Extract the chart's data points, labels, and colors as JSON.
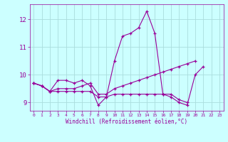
{
  "xlabel": "Windchill (Refroidissement éolien,°C)",
  "x": [
    0,
    1,
    2,
    3,
    4,
    5,
    6,
    7,
    8,
    9,
    10,
    11,
    12,
    13,
    14,
    15,
    16,
    17,
    18,
    19,
    20,
    21,
    22,
    23
  ],
  "line1": [
    9.7,
    9.6,
    9.4,
    9.8,
    9.8,
    9.7,
    9.8,
    9.6,
    8.9,
    9.2,
    10.5,
    11.4,
    11.5,
    11.7,
    12.3,
    11.5,
    9.3,
    9.2,
    9.0,
    8.9,
    10.0,
    10.3,
    null,
    null
  ],
  "line2": [
    9.7,
    9.6,
    9.4,
    9.5,
    9.5,
    9.5,
    9.6,
    9.7,
    9.3,
    9.3,
    9.5,
    9.6,
    9.7,
    9.8,
    9.9,
    10.0,
    10.1,
    10.2,
    10.3,
    10.4,
    10.5,
    null,
    null,
    null
  ],
  "line3": [
    9.7,
    9.6,
    9.4,
    9.4,
    9.4,
    9.4,
    9.4,
    9.4,
    9.2,
    9.2,
    9.3,
    9.3,
    9.3,
    9.3,
    9.3,
    9.3,
    9.3,
    9.3,
    9.1,
    9.0,
    null,
    null,
    null,
    null
  ],
  "line_color": "#990099",
  "bg_color": "#ccffff",
  "grid_color": "#aadddd",
  "ylim": [
    8.7,
    12.55
  ],
  "xlim": [
    -0.5,
    23.5
  ],
  "yticks": [
    9,
    10,
    11,
    12
  ],
  "xticks": [
    0,
    1,
    2,
    3,
    4,
    5,
    6,
    7,
    8,
    9,
    10,
    11,
    12,
    13,
    14,
    15,
    16,
    17,
    18,
    19,
    20,
    21,
    22,
    23
  ]
}
